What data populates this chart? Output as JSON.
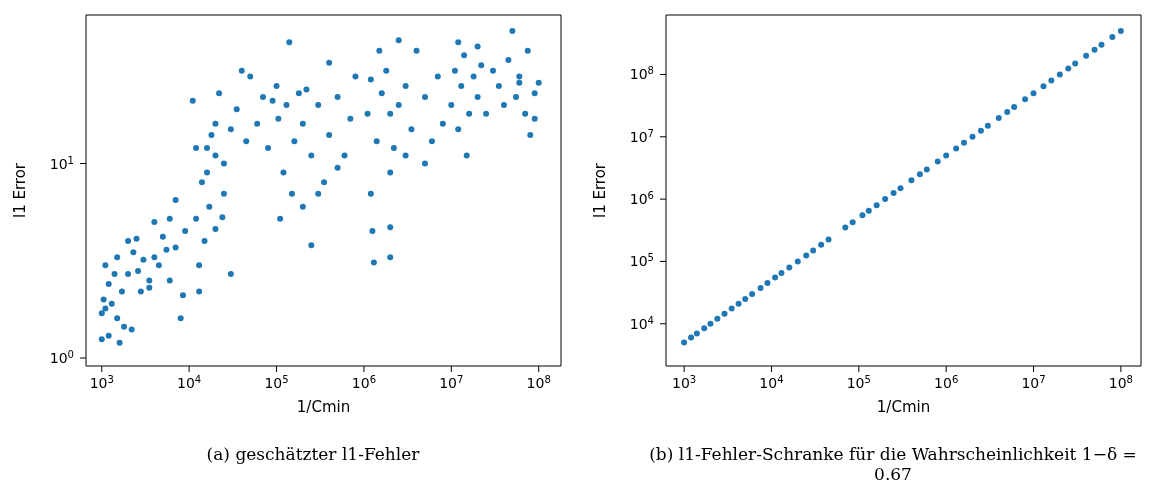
{
  "chart_data": [
    {
      "type": "scatter",
      "xlabel": "1/Cmin",
      "ylabel": "l1 Error",
      "log": "xy",
      "marker": "circle",
      "xlim": [
        660,
        180000000
      ],
      "ylim": [
        0.91,
        58
      ],
      "xticks": [
        {
          "value": 1000,
          "label": "10$^{3}$"
        },
        {
          "value": 10000,
          "label": "10$^{4}$"
        },
        {
          "value": 100000,
          "label": "10$^{5}$"
        },
        {
          "value": 1000000,
          "label": "10$^{6}$"
        },
        {
          "value": 10000000,
          "label": "10$^{7}$"
        },
        {
          "value": 100000000,
          "label": "10$^{8}$"
        }
      ],
      "yticks": [
        {
          "value": 1,
          "label": "10$^{0}$"
        },
        {
          "value": 10,
          "label": "10$^{1}$"
        }
      ],
      "annotations": [
        "(a) geschätzter l1-Fehler"
      ],
      "series": [
        {
          "color": "#1f77b4",
          "x": [
            1000,
            1000,
            1050,
            1100,
            1100,
            1200,
            1200,
            1300,
            1400,
            1500,
            1500,
            1600,
            1700,
            1800,
            2000,
            2000,
            2200,
            2300,
            2500,
            2600,
            2800,
            3000,
            3500,
            3500,
            4000,
            4500,
            5000,
            6000,
            7000,
            7000,
            8000,
            8500,
            9000,
            6000,
            4000,
            5500,
            11000,
            12000,
            12000,
            13000,
            14000,
            15000,
            16000,
            17000,
            18000,
            20000,
            20000,
            22000,
            25000,
            25000,
            30000,
            30000,
            35000,
            40000,
            45000,
            50000,
            60000,
            70000,
            80000,
            90000,
            16000,
            20000,
            24000,
            13000,
            100000,
            105000,
            110000,
            120000,
            130000,
            140000,
            150000,
            160000,
            180000,
            200000,
            200000,
            220000,
            250000,
            250000,
            300000,
            350000,
            400000,
            400000,
            500000,
            600000,
            700000,
            800000,
            500000,
            300000,
            1100000,
            1200000,
            1200000,
            1250000,
            1300000,
            1400000,
            1500000,
            1600000,
            1800000,
            2000000,
            2000000,
            2000000,
            2000000,
            2200000,
            2500000,
            2500000,
            3000000,
            3500000,
            4000000,
            5000000,
            5000000,
            6000000,
            7000000,
            8000000,
            3000000,
            10000000,
            11000000,
            12000000,
            13000000,
            14000000,
            15000000,
            16000000,
            18000000,
            20000000,
            22000000,
            25000000,
            30000000,
            35000000,
            40000000,
            45000000,
            50000000,
            55000000,
            60000000,
            70000000,
            75000000,
            80000000,
            90000000,
            90000000,
            100000000,
            12000000,
            20000000,
            60000000
          ],
          "values": [
            1.25,
            1.7,
            2.0,
            1.8,
            3.0,
            2.4,
            1.3,
            1.9,
            2.7,
            1.6,
            3.3,
            1.2,
            2.2,
            1.45,
            2.7,
            4.0,
            1.4,
            3.5,
            4.1,
            2.8,
            2.2,
            3.2,
            2.5,
            2.3,
            5.0,
            3.0,
            4.2,
            5.2,
            6.5,
            3.7,
            1.6,
            2.1,
            4.5,
            2.5,
            3.3,
            3.6,
            21,
            12,
            5.2,
            3.0,
            8,
            4.0,
            9,
            6,
            14,
            16,
            11,
            23,
            10,
            7,
            2.7,
            15,
            19,
            30,
            13,
            28,
            16,
            22,
            12,
            21,
            12,
            4.6,
            5.3,
            2.2,
            25,
            17,
            5.2,
            9,
            20,
            42,
            7,
            13,
            23,
            16,
            6,
            24,
            3.8,
            11,
            20,
            8,
            14,
            33,
            22,
            11,
            17,
            28,
            9.5,
            7,
            18,
            27,
            7,
            4.5,
            3.1,
            13,
            38,
            23,
            30,
            18,
            9,
            3.3,
            4.7,
            12,
            43,
            20,
            25,
            15,
            38,
            22,
            10,
            13,
            28,
            16,
            11,
            20,
            30,
            15,
            25,
            36,
            11,
            18,
            28,
            22,
            32,
            18,
            30,
            25,
            20,
            34,
            48,
            22,
            28,
            18,
            38,
            14,
            23,
            17,
            26,
            42,
            40,
            26
          ]
        }
      ]
    },
    {
      "type": "scatter",
      "xlabel": "1/Cmin",
      "ylabel": "l1 Error",
      "log": "xy",
      "marker": "circle",
      "xlim": [
        620,
        170000000
      ],
      "ylim": [
        2100,
        900000000
      ],
      "xticks": [
        {
          "value": 1000,
          "label": "10$^{3}$"
        },
        {
          "value": 10000,
          "label": "10$^{4}$"
        },
        {
          "value": 100000,
          "label": "10$^{5}$"
        },
        {
          "value": 1000000,
          "label": "10$^{6}$"
        },
        {
          "value": 10000000,
          "label": "10$^{7}$"
        },
        {
          "value": 100000000,
          "label": "10$^{8}$"
        }
      ],
      "yticks": [
        {
          "value": 10000,
          "label": "10$^{4}$"
        },
        {
          "value": 100000,
          "label": "10$^{5}$"
        },
        {
          "value": 1000000,
          "label": "10$^{6}$"
        },
        {
          "value": 10000000,
          "label": "10$^{7}$"
        },
        {
          "value": 100000000,
          "label": "10$^{8}$"
        }
      ],
      "annotations": [
        "(b) l1-Fehler-Schranke für die Wahrscheinlichkeit 1−δ = 0.67"
      ],
      "series": [
        {
          "color": "#1f77b4",
          "x": [
            1000,
            1200,
            1400,
            1700,
            2000,
            2400,
            2900,
            3500,
            4200,
            5000,
            6000,
            7500,
            9000,
            11000,
            13000,
            16000,
            20000,
            25000,
            30000,
            37000,
            45000,
            70000,
            85000,
            110000,
            130000,
            160000,
            200000,
            250000,
            300000,
            400000,
            500000,
            600000,
            800000,
            1000000,
            1300000,
            1600000,
            2000000,
            2500000,
            3000000,
            4000000,
            5000000,
            6000000,
            8000000,
            10000000,
            13000000,
            16000000,
            20000000,
            25000000,
            30000000,
            40000000,
            50000000,
            60000000,
            80000000,
            100000000
          ],
          "values": [
            5000,
            6000,
            7000,
            8500,
            10000,
            12000,
            14500,
            17500,
            21000,
            25000,
            30000,
            37500,
            45000,
            55000,
            65000,
            80000,
            100000,
            125000,
            150000,
            185000,
            225000,
            350000,
            425000,
            550000,
            650000,
            800000,
            1000000,
            1250000,
            1500000,
            2000000,
            2500000,
            3000000,
            4000000,
            5000000,
            6500000,
            8000000,
            10000000,
            12500000,
            15000000,
            20000000,
            25000000,
            30000000,
            40000000,
            50000000,
            65000000,
            80000000,
            100000000,
            125000000,
            150000000,
            200000000,
            250000000,
            300000000,
            400000000,
            500000000
          ]
        }
      ]
    }
  ]
}
